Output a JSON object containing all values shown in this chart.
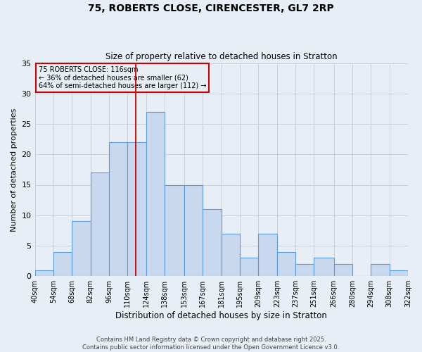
{
  "title1": "75, ROBERTS CLOSE, CIRENCESTER, GL7 2RP",
  "title2": "Size of property relative to detached houses in Stratton",
  "xlabel": "Distribution of detached houses by size in Stratton",
  "ylabel": "Number of detached properties",
  "annotation_line1": "75 ROBERTS CLOSE: 116sqm",
  "annotation_line2": "← 36% of detached houses are smaller (62)",
  "annotation_line3": "64% of semi-detached houses are larger (112) →",
  "marker_value": 116,
  "bar_left_edges": [
    40,
    54,
    68,
    82,
    96,
    110,
    124,
    138,
    153,
    167,
    181,
    195,
    209,
    223,
    237,
    251,
    266,
    280,
    294,
    308
  ],
  "bar_widths": [
    14,
    14,
    14,
    14,
    14,
    14,
    14,
    15,
    14,
    14,
    14,
    14,
    14,
    14,
    14,
    15,
    14,
    14,
    14,
    14
  ],
  "bar_heights": [
    1,
    4,
    9,
    17,
    22,
    22,
    27,
    15,
    15,
    11,
    7,
    3,
    7,
    4,
    2,
    3,
    2,
    0,
    2,
    1
  ],
  "bar_color": "#c8d9ef",
  "bar_edge_color": "#5b9bd5",
  "marker_color": "#cc0000",
  "grid_color": "#c8d0dc",
  "bg_color": "#e8eef5",
  "annotation_box_color": "#cc0000",
  "ylim": [
    0,
    35
  ],
  "yticks": [
    0,
    5,
    10,
    15,
    20,
    25,
    30,
    35
  ],
  "tick_labels": [
    "40sqm",
    "54sqm",
    "68sqm",
    "82sqm",
    "96sqm",
    "110sqm",
    "124sqm",
    "138sqm",
    "153sqm",
    "167sqm",
    "181sqm",
    "195sqm",
    "209sqm",
    "223sqm",
    "237sqm",
    "251sqm",
    "266sqm",
    "280sqm",
    "294sqm",
    "308sqm",
    "322sqm"
  ],
  "footer1": "Contains HM Land Registry data © Crown copyright and database right 2025.",
  "footer2": "Contains public sector information licensed under the Open Government Licence v3.0."
}
